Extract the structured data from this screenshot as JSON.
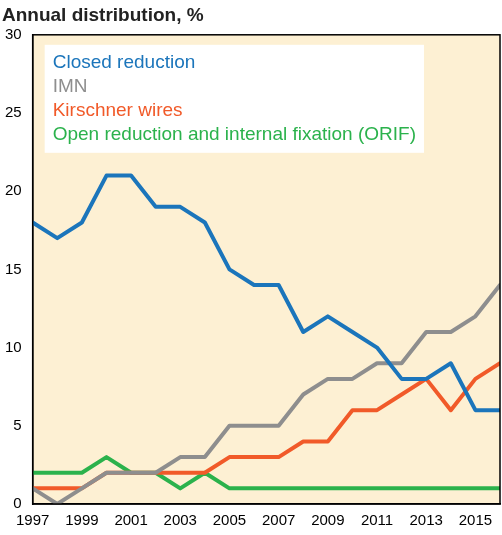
{
  "chart_data": {
    "type": "line",
    "y_label": "Annual distribution, %",
    "x": [
      1997,
      1998,
      1999,
      2000,
      2001,
      2002,
      2003,
      2004,
      2005,
      2006,
      2007,
      2008,
      2009,
      2010,
      2011,
      2012,
      2013,
      2014,
      2015,
      2016
    ],
    "series": [
      {
        "name": "Closed reduction",
        "color": "#1b75bb",
        "values": [
          18,
          17,
          18,
          21,
          21,
          19,
          19,
          18,
          15,
          14,
          14,
          11,
          12,
          11,
          10,
          8,
          8,
          9,
          6,
          6
        ]
      },
      {
        "name": "IMN",
        "color": "#8e8e8e",
        "values": [
          1,
          0,
          1,
          2,
          2,
          2,
          3,
          3,
          5,
          5,
          5,
          7,
          8,
          8,
          9,
          9,
          11,
          11,
          12,
          14
        ]
      },
      {
        "name": "Kirschner wires",
        "color": "#f15a29",
        "values": [
          1,
          1,
          1,
          2,
          2,
          2,
          2,
          2,
          3,
          3,
          3,
          4,
          4,
          6,
          6,
          7,
          8,
          6,
          8,
          9
        ]
      },
      {
        "name": "Open reduction and internal fixation (ORIF)",
        "color": "#2bb24c",
        "values": [
          2,
          2,
          2,
          3,
          2,
          2,
          1,
          2,
          1,
          1,
          1,
          1,
          1,
          1,
          1,
          1,
          1,
          1,
          1,
          1
        ]
      }
    ],
    "xlim": [
      1997,
      2016
    ],
    "xticks": [
      1997,
      1999,
      2001,
      2003,
      2005,
      2007,
      2009,
      2011,
      2013,
      2015
    ],
    "ylim": [
      0,
      30
    ],
    "yticks": [
      0,
      5,
      10,
      15,
      20,
      25,
      30
    ],
    "grid": false,
    "legend": "upper left"
  }
}
